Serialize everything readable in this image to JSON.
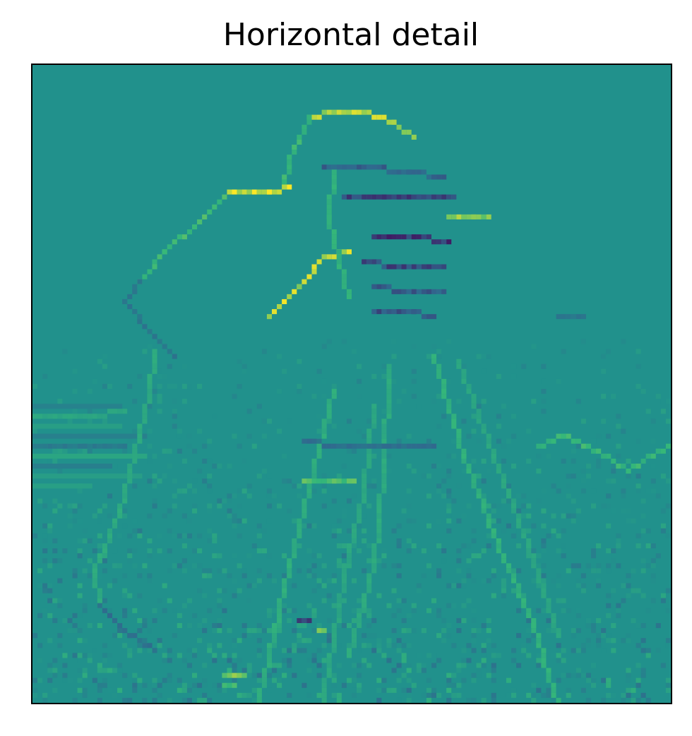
{
  "chart_data": {
    "type": "heatmap",
    "title": "Horizontal detail",
    "xlabel": "",
    "ylabel": "",
    "x_ticks": [],
    "y_ticks": [],
    "colormap": "viridis",
    "colors": {
      "background": "#21918c",
      "low": "#440154",
      "low_mid": "#31688e",
      "mid": "#21918c",
      "high_mid": "#35b779",
      "high": "#fde725"
    },
    "grid": false,
    "legend": "none",
    "image_size": [
      128,
      128
    ],
    "value_range": [
      -1,
      1
    ],
    "baseline_value": 0,
    "depicted_content": "horizontal wavelet detail coefficients of a photographer standing behind a camera on a tripod; strongest responses along the hat brim, shoulder line, camera body and tripod legs",
    "feature_strokes": [
      {
        "name": "hat-top",
        "value": 0.85,
        "points": [
          [
            55,
            10
          ],
          [
            60,
            9
          ],
          [
            66,
            9
          ],
          [
            72,
            11
          ],
          [
            76,
            14
          ]
        ]
      },
      {
        "name": "hat-left-side",
        "value": 0.5,
        "points": [
          [
            55,
            10
          ],
          [
            52,
            16
          ],
          [
            50,
            23
          ]
        ]
      },
      {
        "name": "hat-brim",
        "value": 0.95,
        "points": [
          [
            39,
            25
          ],
          [
            47,
            25
          ],
          [
            51,
            24
          ]
        ]
      },
      {
        "name": "shoulder-right",
        "value": 0.55,
        "points": [
          [
            38,
            26
          ],
          [
            33,
            31
          ],
          [
            26,
            37
          ],
          [
            21,
            43
          ]
        ]
      },
      {
        "name": "shoulder-left-down",
        "value": -0.35,
        "points": [
          [
            21,
            43
          ],
          [
            18,
            47
          ],
          [
            24,
            54
          ],
          [
            28,
            58
          ]
        ]
      },
      {
        "name": "arm-diagonal",
        "value": 0.9,
        "points": [
          [
            47,
            50
          ],
          [
            53,
            44
          ],
          [
            58,
            38
          ],
          [
            63,
            37
          ]
        ]
      },
      {
        "name": "camera-top",
        "value": -0.55,
        "points": [
          [
            58,
            20
          ],
          [
            67,
            20
          ],
          [
            75,
            21
          ],
          [
            82,
            22
          ]
        ]
      },
      {
        "name": "camera-band-1",
        "value": -0.75,
        "points": [
          [
            62,
            26
          ],
          [
            70,
            26
          ],
          [
            77,
            26
          ],
          [
            84,
            26
          ]
        ]
      },
      {
        "name": "camera-band-2",
        "value": -0.8,
        "points": [
          [
            68,
            34
          ],
          [
            76,
            34
          ],
          [
            83,
            35
          ]
        ]
      },
      {
        "name": "camera-band-3",
        "value": -0.7,
        "points": [
          [
            66,
            39
          ],
          [
            74,
            40
          ],
          [
            82,
            40
          ]
        ]
      },
      {
        "name": "camera-band-4",
        "value": -0.6,
        "points": [
          [
            68,
            44
          ],
          [
            76,
            45
          ],
          [
            82,
            45
          ]
        ]
      },
      {
        "name": "camera-band-5",
        "value": -0.65,
        "points": [
          [
            68,
            49
          ],
          [
            76,
            49
          ],
          [
            80,
            50
          ]
        ]
      },
      {
        "name": "lens",
        "value": 0.75,
        "points": [
          [
            83,
            30
          ],
          [
            88,
            30
          ],
          [
            91,
            30
          ]
        ]
      },
      {
        "name": "camera-left-edge",
        "value": 0.45,
        "points": [
          [
            60,
            21
          ],
          [
            59,
            30
          ],
          [
            61,
            39
          ],
          [
            63,
            46
          ]
        ]
      },
      {
        "name": "body-left-edge",
        "value": 0.35,
        "points": [
          [
            24,
            57
          ],
          [
            23,
            66
          ],
          [
            20,
            77
          ],
          [
            17,
            89
          ],
          [
            12,
            101
          ],
          [
            13,
            108
          ]
        ]
      },
      {
        "name": "body-bottom",
        "value": -0.45,
        "points": [
          [
            13,
            108
          ],
          [
            18,
            113
          ],
          [
            24,
            117
          ]
        ]
      },
      {
        "name": "tripod-left-leg",
        "value": 0.4,
        "points": [
          [
            60,
            65
          ],
          [
            56,
            80
          ],
          [
            51,
            100
          ],
          [
            47,
            118
          ],
          [
            43,
            134
          ]
        ]
      },
      {
        "name": "tripod-left-inner",
        "value": 0.3,
        "points": [
          [
            68,
            68
          ],
          [
            66,
            85
          ],
          [
            62,
            102
          ],
          [
            59,
            120
          ],
          [
            56,
            134
          ]
        ]
      },
      {
        "name": "tripod-center-leg",
        "value": 0.35,
        "points": [
          [
            71,
            60
          ],
          [
            70,
            80
          ],
          [
            68,
            100
          ],
          [
            63,
            118
          ]
        ]
      },
      {
        "name": "tripod-right-leg",
        "value": 0.45,
        "points": [
          [
            80,
            58
          ],
          [
            86,
            78
          ],
          [
            93,
            96
          ],
          [
            100,
            112
          ],
          [
            106,
            132
          ]
        ]
      },
      {
        "name": "tripod-right-outer",
        "value": 0.3,
        "points": [
          [
            85,
            59
          ],
          [
            92,
            78
          ],
          [
            99,
            96
          ],
          [
            105,
            114
          ]
        ]
      },
      {
        "name": "horizon-left",
        "value": 0.3,
        "points": [
          [
            0,
            70
          ],
          [
            10,
            70
          ],
          [
            18,
            69
          ]
        ]
      },
      {
        "name": "horizon-band",
        "value": -0.3,
        "points": [
          [
            0,
            76
          ],
          [
            10,
            76
          ],
          [
            18,
            76
          ]
        ]
      },
      {
        "name": "mid-band",
        "value": 0.6,
        "points": [
          [
            54,
            83
          ],
          [
            60,
            83
          ],
          [
            64,
            83
          ]
        ]
      },
      {
        "name": "ground-band",
        "value": -0.45,
        "points": [
          [
            54,
            75
          ],
          [
            62,
            76
          ],
          [
            70,
            76
          ],
          [
            80,
            76
          ]
        ]
      },
      {
        "name": "far-hill",
        "value": 0.5,
        "points": [
          [
            101,
            76
          ],
          [
            106,
            74
          ],
          [
            113,
            77
          ],
          [
            119,
            81
          ],
          [
            125,
            77
          ],
          [
            128,
            76
          ]
        ]
      },
      {
        "name": "building",
        "value": -0.35,
        "points": [
          [
            105,
            50
          ],
          [
            110,
            50
          ]
        ]
      },
      {
        "name": "bottom-blob",
        "value": 0.75,
        "points": [
          [
            38,
            122
          ],
          [
            42,
            122
          ]
        ]
      },
      {
        "name": "bottom-left-blob",
        "value": 0.6,
        "points": [
          [
            38,
            124
          ],
          [
            40,
            124
          ]
        ]
      },
      {
        "name": "foot-blob",
        "value": -0.7,
        "points": [
          [
            53,
            111
          ],
          [
            55,
            111
          ]
        ]
      },
      {
        "name": "foot-blob-2",
        "value": 0.7,
        "points": [
          [
            57,
            113
          ],
          [
            58,
            113
          ]
        ]
      }
    ]
  }
}
